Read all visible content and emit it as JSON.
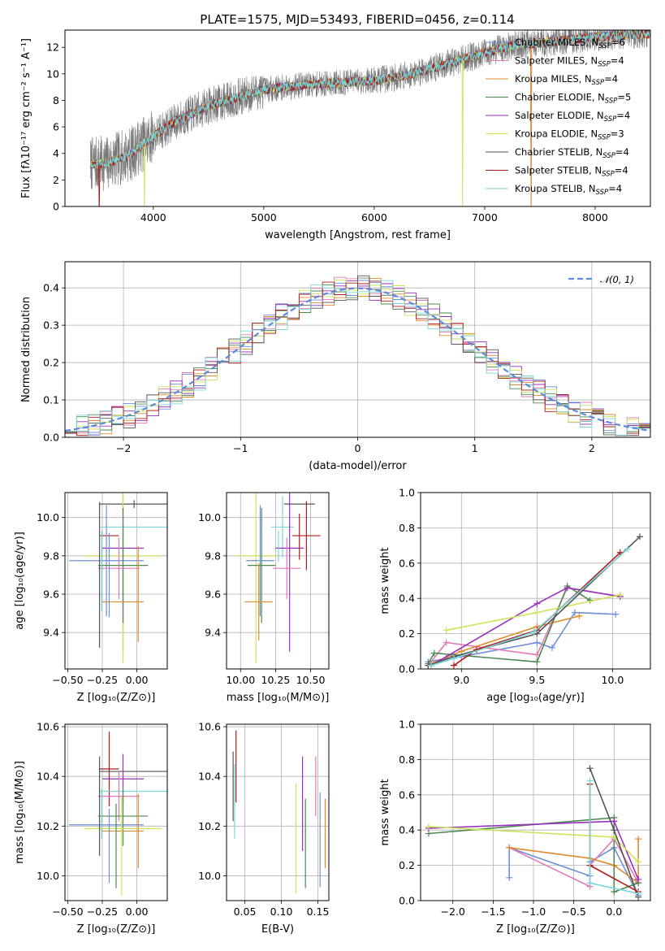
{
  "figure_title": "PLATE=1575, MJD=53493, FIBERID=0456, z=0.114",
  "colors": {
    "Chabrier MILES": "#6f8fd8",
    "Salpeter MILES": "#e07ab8",
    "Kroupa MILES": "#e08a2a",
    "Chabrier ELODIE": "#4d8a50",
    "Salpeter ELODIE": "#9a2fbf",
    "Kroupa ELODIE": "#cde35a",
    "Chabrier STELIB": "#555555",
    "Salpeter STELIB": "#b01a1a",
    "Kroupa STELIB": "#79d6d9",
    "normal": "#5b8bd9"
  },
  "chart_data": [
    {
      "id": "spectrum",
      "type": "line",
      "title": "PLATE=1575, MJD=53493, FIBERID=0456, z=0.114",
      "xlabel": "wavelength [Angstrom, rest frame]",
      "ylabel": "Flux [fλ10⁻¹⁷ erg cm⁻² s⁻¹ A⁻¹]",
      "xlim": [
        3200,
        8500
      ],
      "ylim": [
        0,
        13.3
      ],
      "xticks": [
        "4000",
        "5000",
        "6000",
        "7000",
        "8000"
      ],
      "xtick_values": [
        4000,
        5000,
        6000,
        7000,
        8000
      ],
      "yticks": [
        "0",
        "2",
        "4",
        "6",
        "8",
        "10",
        "12"
      ],
      "ytick_values": [
        0,
        2,
        4,
        6,
        8,
        10,
        12
      ],
      "legend": {
        "placement": "upper-right",
        "entries": [
          {
            "label": "Chabrier MILES, N",
            "sub": "SSP",
            "suffix": "=6"
          },
          {
            "label": "Salpeter MILES, N",
            "sub": "SSP",
            "suffix": "=4"
          },
          {
            "label": "Kroupa MILES, N",
            "sub": "SSP",
            "suffix": "=4"
          },
          {
            "label": "Chabrier ELODIE, N",
            "sub": "SSP",
            "suffix": "=5"
          },
          {
            "label": "Salpeter ELODIE, N",
            "sub": "SSP",
            "suffix": "=4"
          },
          {
            "label": "Kroupa ELODIE, N",
            "sub": "SSP",
            "suffix": "=3"
          },
          {
            "label": "Chabrier STELIB, N",
            "sub": "SSP",
            "suffix": "=4"
          },
          {
            "label": "Salpeter STELIB, N",
            "sub": "SSP",
            "suffix": "=4"
          },
          {
            "label": "Kroupa STELIB, N",
            "sub": "SSP",
            "suffix": "=4"
          }
        ]
      },
      "continuum": {
        "wavelength": [
          3450,
          3600,
          3800,
          4000,
          4200,
          4500,
          4800,
          5000,
          5300,
          5600,
          6000,
          6300,
          6600,
          7000,
          7300,
          7600,
          8000,
          8400
        ],
        "flux": [
          3.2,
          3.3,
          4.0,
          5.3,
          6.4,
          7.6,
          8.3,
          8.8,
          9.1,
          9.3,
          9.5,
          9.9,
          10.6,
          11.6,
          12.2,
          12.4,
          12.8,
          13.0
        ]
      },
      "data_range": [
        3430,
        8500
      ],
      "drops": [
        {
          "series": "Salpeter STELIB",
          "x": 3510
        },
        {
          "series": "Kroupa ELODIE",
          "x": 3920
        },
        {
          "series": "Kroupa ELODIE",
          "x": 6800
        },
        {
          "series": "Kroupa MILES",
          "x": 7420
        },
        {
          "series": "Salpeter MILES",
          "x": 7420
        }
      ],
      "grid": false
    },
    {
      "id": "residuals",
      "type": "bar",
      "xlabel": "(data-model)/error",
      "ylabel": "Normed distribution",
      "xlim": [
        -2.5,
        2.5
      ],
      "ylim": [
        0,
        0.47
      ],
      "xticks": [
        "−2",
        "−1",
        "0",
        "1",
        "2"
      ],
      "xtick_values": [
        -2,
        -1,
        0,
        1,
        2
      ],
      "yticks": [
        "0.0",
        "0.1",
        "0.2",
        "0.3",
        "0.4"
      ],
      "ytick_values": [
        0,
        0.1,
        0.2,
        0.3,
        0.4
      ],
      "legend": {
        "placement": "upper-right",
        "label": "𝒩(0, 1)"
      },
      "bin_width": 0.1,
      "grid": true
    },
    {
      "id": "age-vs-Z",
      "type": "scatter",
      "xlabel": "Z [log₁₀(Z/Z⊙)]",
      "ylabel": "age  [log₁₀(age/yr)]",
      "xlim": [
        -0.52,
        0.22
      ],
      "ylim": [
        9.21,
        10.13
      ],
      "xticks": [
        "−0.50",
        "−0.25",
        "0.00"
      ],
      "xtick_values": [
        -0.5,
        -0.25,
        0
      ],
      "yticks": [
        "9.4",
        "9.6",
        "9.8",
        "10.0"
      ],
      "ytick_values": [
        9.4,
        9.6,
        9.8,
        10.0
      ],
      "grid": true,
      "points": [
        {
          "series": "Chabrier STELIB",
          "x": -0.02,
          "xerr": 0.25,
          "y": 10.07,
          "yerr": 0.02
        },
        {
          "series": "Kroupa STELIB",
          "x": -0.02,
          "xerr": 0.25,
          "y": 9.95,
          "yerr": 0.0
        },
        {
          "series": "Salpeter STELIB",
          "x": -0.2,
          "xerr": 0.07,
          "y": 9.905,
          "yerr": 0.0
        },
        {
          "series": "Salpeter ELODIE",
          "x": -0.1,
          "xerr": 0.15,
          "y": 9.84,
          "yerr": 0.54
        },
        {
          "series": "Kroupa ELODIE",
          "x": -0.1,
          "xerr": 0.28,
          "y": 9.8,
          "yerr": 0.56
        },
        {
          "series": "Chabrier MILES",
          "x": -0.22,
          "xerr": 0.27,
          "y": 9.775,
          "yerr": 0.29
        },
        {
          "series": "Chabrier ELODIE",
          "x": -0.1,
          "xerr": 0.18,
          "y": 9.75,
          "yerr": 0.3
        },
        {
          "series": "Salpeter MILES",
          "x": -0.13,
          "xerr": 0.15,
          "y": 9.735,
          "yerr": 0.16
        },
        {
          "series": "Kroupa MILES",
          "x": -0.1,
          "xerr": 0.15,
          "y": 9.56,
          "yerr": 0.0
        },
        {
          "series": "Chabrier STELIB",
          "x": -0.27,
          "xerr": 0.0,
          "y": 9.7,
          "yerr": 0.38
        },
        {
          "series": "Kroupa STELIB",
          "x": -0.255,
          "xerr": 0.0,
          "y": 9.72,
          "yerr": 0.21
        },
        {
          "series": "Chabrier MILES",
          "x": -0.2,
          "xerr": 0.0,
          "y": 9.7,
          "yerr": 0.22
        },
        {
          "series": "Kroupa MILES",
          "x": 0.01,
          "xerr": 0.0,
          "y": 9.6,
          "yerr": 0.25
        }
      ]
    },
    {
      "id": "age-vs-mass",
      "type": "scatter",
      "xlabel": "mass [log₁₀(M/M⊙)]",
      "ylabel": "",
      "xlim": [
        9.9,
        10.63
      ],
      "ylim": [
        9.21,
        10.13
      ],
      "xticks": [
        "10.00",
        "10.25",
        "10.50"
      ],
      "xtick_values": [
        10.0,
        10.25,
        10.5
      ],
      "yticks": [
        "9.4",
        "9.6",
        "9.8",
        "10.0"
      ],
      "ytick_values": [
        9.4,
        9.6,
        9.8,
        10.0
      ],
      "grid": true,
      "points": [
        {
          "series": "Chabrier STELIB",
          "x": 10.42,
          "xerr": 0.11,
          "y": 10.07,
          "yerr": 0.0
        },
        {
          "series": "Kroupa STELIB",
          "x": 10.3,
          "xerr": 0.08,
          "y": 9.95,
          "yerr": 0.16
        },
        {
          "series": "Salpeter STELIB",
          "x": 10.47,
          "xerr": 0.1,
          "y": 9.905,
          "yerr": 0.18
        },
        {
          "series": "Salpeter ELODIE",
          "x": 10.35,
          "xerr": 0.1,
          "y": 9.84,
          "yerr": 0.54
        },
        {
          "series": "Kroupa ELODIE",
          "x": 10.11,
          "xerr": 0.15,
          "y": 9.8,
          "yerr": 0.56
        },
        {
          "series": "Chabrier MILES",
          "x": 10.14,
          "xerr": 0.1,
          "y": 9.775,
          "yerr": 0.29
        },
        {
          "series": "Chabrier ELODIE",
          "x": 10.15,
          "xerr": 0.1,
          "y": 9.75,
          "yerr": 0.3
        },
        {
          "series": "Salpeter MILES",
          "x": 10.33,
          "xerr": 0.1,
          "y": 9.735,
          "yerr": 0.16
        },
        {
          "series": "Kroupa MILES",
          "x": 10.13,
          "xerr": 0.1,
          "y": 9.56,
          "yerr": 0.2
        },
        {
          "series": "Kroupa STELIB",
          "x": 10.27,
          "xerr": 0.0,
          "y": 9.85,
          "yerr": 0.08
        },
        {
          "series": "Salpeter STELIB",
          "x": 10.42,
          "xerr": 0.0,
          "y": 9.9,
          "yerr": 0.12
        }
      ]
    },
    {
      "id": "weight-vs-age",
      "type": "line",
      "xlabel": "age  [log₁₀(age/yr)]",
      "ylabel": "mass weight",
      "xlim": [
        8.73,
        10.25
      ],
      "ylim": [
        0,
        1.0
      ],
      "xticks": [
        "9.0",
        "9.5",
        "10.0"
      ],
      "xtick_values": [
        9.0,
        9.5,
        10.0
      ],
      "yticks": [
        "0.0",
        "0.2",
        "0.4",
        "0.6",
        "0.8",
        "1.0"
      ],
      "ytick_values": [
        0,
        0.2,
        0.4,
        0.6,
        0.8,
        1.0
      ],
      "grid": true,
      "series": [
        {
          "series": "Chabrier MILES",
          "x": [
            8.78,
            8.9,
            9.0,
            9.5,
            9.6,
            9.75,
            10.02
          ],
          "y": [
            0.04,
            0.06,
            0.07,
            0.15,
            0.12,
            0.32,
            0.31
          ]
        },
        {
          "series": "Salpeter MILES",
          "x": [
            8.78,
            8.9,
            9.5,
            9.7,
            10.05
          ],
          "y": [
            0.02,
            0.15,
            0.08,
            0.46,
            0.41
          ]
        },
        {
          "series": "Kroupa MILES",
          "x": [
            8.8,
            9.0,
            9.5,
            9.78
          ],
          "y": [
            0.03,
            0.1,
            0.24,
            0.3
          ]
        },
        {
          "series": "Chabrier ELODIE",
          "x": [
            8.78,
            8.82,
            9.5,
            9.7,
            9.85
          ],
          "y": [
            0.03,
            0.09,
            0.04,
            0.47,
            0.39
          ]
        },
        {
          "series": "Salpeter ELODIE",
          "x": [
            8.8,
            9.5,
            9.7,
            10.05
          ],
          "y": [
            0.02,
            0.37,
            0.46,
            0.41
          ]
        },
        {
          "series": "Kroupa ELODIE",
          "x": [
            8.9,
            9.5,
            10.05
          ],
          "y": [
            0.22,
            0.32,
            0.42
          ]
        },
        {
          "series": "Chabrier STELIB",
          "x": [
            8.78,
            8.95,
            9.5,
            10.18
          ],
          "y": [
            0.02,
            0.07,
            0.2,
            0.75
          ]
        },
        {
          "series": "Salpeter STELIB",
          "x": [
            8.95,
            9.1,
            9.5,
            10.05
          ],
          "y": [
            0.02,
            0.11,
            0.22,
            0.66
          ]
        },
        {
          "series": "Kroupa STELIB",
          "x": [
            8.8,
            8.95,
            9.48,
            10.1
          ],
          "y": [
            0.02,
            0.06,
            0.21,
            0.68
          ]
        }
      ]
    },
    {
      "id": "mass-vs-Z",
      "type": "scatter",
      "xlabel": "Z [log₁₀(Z/Z⊙)]",
      "ylabel": "mass [log₁₀(M/M⊙)]",
      "xlim": [
        -0.52,
        0.22
      ],
      "ylim": [
        9.9,
        10.61
      ],
      "xticks": [
        "−0.50",
        "−0.25",
        "0.00"
      ],
      "xtick_values": [
        -0.5,
        -0.25,
        0
      ],
      "yticks": [
        "10.0",
        "10.2",
        "10.4",
        "10.6"
      ],
      "ytick_values": [
        10.0,
        10.2,
        10.4,
        10.6
      ],
      "grid": true,
      "points": [
        {
          "series": "Salpeter STELIB",
          "x": -0.2,
          "xerr": 0.07,
          "y": 10.43,
          "yerr": 0.15
        },
        {
          "series": "Chabrier STELIB",
          "x": -0.02,
          "xerr": 0.25,
          "y": 10.42,
          "yerr": 0.0
        },
        {
          "series": "Salpeter ELODIE",
          "x": -0.1,
          "xerr": 0.15,
          "y": 10.39,
          "yerr": 0.1
        },
        {
          "series": "Kroupa STELIB",
          "x": -0.02,
          "xerr": 0.25,
          "y": 10.34,
          "yerr": 0.0
        },
        {
          "series": "Salpeter MILES",
          "x": -0.13,
          "xerr": 0.15,
          "y": 10.32,
          "yerr": 0.1
        },
        {
          "series": "Chabrier ELODIE",
          "x": -0.1,
          "xerr": 0.18,
          "y": 10.24,
          "yerr": 0.12
        },
        {
          "series": "Chabrier MILES",
          "x": -0.22,
          "xerr": 0.27,
          "y": 10.205,
          "yerr": 0.0
        },
        {
          "series": "Kroupa ELODIE",
          "x": -0.1,
          "xerr": 0.28,
          "y": 10.19,
          "yerr": 0.0
        },
        {
          "series": "Kroupa MILES",
          "x": -0.1,
          "xerr": 0.15,
          "y": 10.18,
          "yerr": 0.0
        },
        {
          "series": "Chabrier STELIB",
          "x": -0.27,
          "xerr": 0.0,
          "y": 10.28,
          "yerr": 0.2
        },
        {
          "series": "Kroupa STELIB",
          "x": -0.255,
          "xerr": 0.0,
          "y": 10.25,
          "yerr": 0.1
        },
        {
          "series": "Chabrier MILES",
          "x": -0.2,
          "xerr": 0.0,
          "y": 10.12,
          "yerr": 0.15
        },
        {
          "series": "Chabrier ELODIE",
          "x": -0.15,
          "xerr": 0.0,
          "y": 10.12,
          "yerr": 0.17
        },
        {
          "series": "Kroupa ELODIE",
          "x": -0.11,
          "xerr": 0.0,
          "y": 10.12,
          "yerr": 0.2
        },
        {
          "series": "Kroupa MILES",
          "x": 0.01,
          "xerr": 0.0,
          "y": 10.18,
          "yerr": 0.15
        }
      ]
    },
    {
      "id": "mass-vs-EBV",
      "type": "scatter",
      "xlabel": "E(B-V)",
      "ylabel": "",
      "xlim": [
        0.025,
        0.165
      ],
      "ylim": [
        9.9,
        10.61
      ],
      "xticks": [
        "0.05",
        "0.10",
        "0.15"
      ],
      "xtick_values": [
        0.05,
        0.1,
        0.15
      ],
      "yticks": [
        "10.0",
        "10.2",
        "10.4",
        "10.6"
      ],
      "ytick_values": [
        10.0,
        10.2,
        10.4,
        10.6
      ],
      "grid": true,
      "points": [
        {
          "series": "Chabrier STELIB",
          "x": 0.034,
          "xerr": 0.0,
          "y": 10.36,
          "yerr": 0.14
        },
        {
          "series": "Salpeter STELIB",
          "x": 0.038,
          "xerr": 0.0,
          "y": 10.44,
          "yerr": 0.145
        },
        {
          "series": "Kroupa STELIB",
          "x": 0.036,
          "xerr": 0.0,
          "y": 10.3,
          "yerr": 0.15
        },
        {
          "series": "Kroupa ELODIE",
          "x": 0.12,
          "xerr": 0.0,
          "y": 10.15,
          "yerr": 0.22
        },
        {
          "series": "Salpeter ELODIE",
          "x": 0.129,
          "xerr": 0.0,
          "y": 10.29,
          "yerr": 0.19
        },
        {
          "series": "Chabrier ELODIE",
          "x": 0.133,
          "xerr": 0.0,
          "y": 10.13,
          "yerr": 0.18
        },
        {
          "series": "Salpeter MILES",
          "x": 0.147,
          "xerr": 0.0,
          "y": 10.36,
          "yerr": 0.12
        },
        {
          "series": "Chabrier MILES",
          "x": 0.153,
          "xerr": 0.0,
          "y": 10.145,
          "yerr": 0.19
        },
        {
          "series": "Kroupa MILES",
          "x": 0.16,
          "xerr": 0.0,
          "y": 10.17,
          "yerr": 0.14
        }
      ]
    },
    {
      "id": "weight-vs-Z",
      "type": "line",
      "xlabel": "Z [log₁₀(Z/Z⊙)]",
      "ylabel": "mass weight",
      "xlim": [
        -2.4,
        0.45
      ],
      "ylim": [
        0,
        1.0
      ],
      "xticks": [
        "−2.0",
        "−1.5",
        "−1.0",
        "−0.5",
        "0.0"
      ],
      "xtick_values": [
        -2.0,
        -1.5,
        -1.0,
        -0.5,
        0.0
      ],
      "yticks": [
        "0.0",
        "0.2",
        "0.4",
        "0.6",
        "0.8",
        "1.0"
      ],
      "ytick_values": [
        0,
        0.2,
        0.4,
        0.6,
        0.8,
        1.0
      ],
      "grid": true,
      "series": [
        {
          "series": "Chabrier MILES",
          "x": [
            -1.3,
            -1.3,
            -0.3,
            -0.3,
            0.0,
            0.3
          ],
          "y": [
            0.13,
            0.3,
            0.14,
            0.22,
            0.3,
            0.03
          ]
        },
        {
          "series": "Salpeter MILES",
          "x": [
            -1.3,
            -0.3,
            -0.3,
            0.0,
            0.3
          ],
          "y": [
            0.3,
            0.08,
            0.2,
            0.35,
            0.1
          ]
        },
        {
          "series": "Kroupa MILES",
          "x": [
            -1.3,
            -0.3,
            0.0,
            0.3,
            0.3
          ],
          "y": [
            0.3,
            0.24,
            0.2,
            0.1,
            0.35
          ]
        },
        {
          "series": "Chabrier ELODIE",
          "x": [
            -2.3,
            0.0,
            0.0,
            0.3
          ],
          "y": [
            0.38,
            0.47,
            0.05,
            0.1
          ]
        },
        {
          "series": "Salpeter ELODIE",
          "x": [
            -2.3,
            0.0,
            0.3
          ],
          "y": [
            0.41,
            0.45,
            0.12
          ]
        },
        {
          "series": "Kroupa ELODIE",
          "x": [
            -2.3,
            0.0,
            0.3
          ],
          "y": [
            0.42,
            0.36,
            0.22
          ]
        },
        {
          "series": "Chabrier STELIB",
          "x": [
            -0.3,
            0.0,
            0.3
          ],
          "y": [
            0.75,
            0.4,
            0.02
          ]
        },
        {
          "series": "Salpeter STELIB",
          "x": [
            -0.3,
            -0.3,
            0.3
          ],
          "y": [
            0.66,
            0.2,
            0.05
          ]
        },
        {
          "series": "Kroupa STELIB",
          "x": [
            -0.3,
            -0.3,
            0.3
          ],
          "y": [
            0.68,
            0.1,
            0.04
          ]
        }
      ]
    }
  ]
}
